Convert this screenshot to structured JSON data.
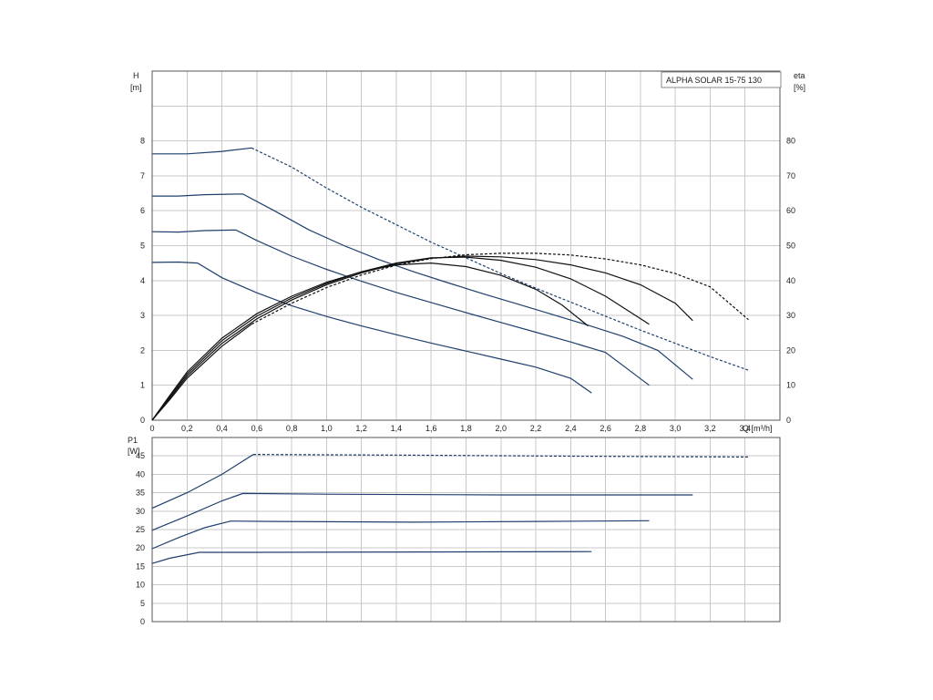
{
  "chart_data": [
    {
      "type": "line",
      "title": "ALPHA SOLAR 15-75  130",
      "xlabel": "Q [m³/h]",
      "ylabel": [
        "H",
        "[m]"
      ],
      "y2label": [
        "eta",
        "[%]"
      ],
      "xlim": [
        0,
        3.6
      ],
      "ylim": [
        0,
        10
      ],
      "y2lim": [
        0,
        100
      ],
      "xticks": [
        "0",
        "0,2",
        "0,4",
        "0,6",
        "0,8",
        "1,0",
        "1,2",
        "1,4",
        "1,6",
        "1,8",
        "2,0",
        "2,2",
        "2,4",
        "2,6",
        "2,8",
        "3,0",
        "3,2",
        "3,4"
      ],
      "yticks": [
        "0",
        "1",
        "2",
        "3",
        "4",
        "5",
        "6",
        "7",
        "8"
      ],
      "y2ticks": [
        "0",
        "10",
        "20",
        "30",
        "40",
        "50",
        "60",
        "70",
        "80"
      ],
      "grid": true,
      "head_series": [
        {
          "axis": "H",
          "color": "#1f3f6e",
          "dashed": false,
          "points": [
            [
              0,
              4.52
            ],
            [
              0.15,
              4.53
            ],
            [
              0.26,
              4.5
            ],
            [
              0.4,
              4.08
            ],
            [
              0.6,
              3.65
            ],
            [
              0.8,
              3.28
            ],
            [
              1.0,
              2.97
            ],
            [
              1.2,
              2.7
            ],
            [
              1.4,
              2.45
            ],
            [
              1.6,
              2.21
            ],
            [
              1.8,
              1.98
            ],
            [
              2.0,
              1.75
            ],
            [
              2.2,
              1.52
            ],
            [
              2.4,
              1.2
            ],
            [
              2.52,
              0.78
            ]
          ]
        },
        {
          "axis": "H",
          "color": "#1f3f6e",
          "dashed": false,
          "points": [
            [
              0,
              5.4
            ],
            [
              0.15,
              5.39
            ],
            [
              0.3,
              5.43
            ],
            [
              0.48,
              5.45
            ],
            [
              0.6,
              5.15
            ],
            [
              0.8,
              4.7
            ],
            [
              1.0,
              4.32
            ],
            [
              1.2,
              3.98
            ],
            [
              1.4,
              3.66
            ],
            [
              1.6,
              3.37
            ],
            [
              1.8,
              3.08
            ],
            [
              2.0,
              2.8
            ],
            [
              2.2,
              2.52
            ],
            [
              2.4,
              2.24
            ],
            [
              2.6,
              1.94
            ],
            [
              2.85,
              1.0
            ]
          ]
        },
        {
          "axis": "H",
          "color": "#1f3f6e",
          "dashed": false,
          "points": [
            [
              0,
              6.42
            ],
            [
              0.15,
              6.42
            ],
            [
              0.3,
              6.46
            ],
            [
              0.52,
              6.48
            ],
            [
              0.7,
              6.0
            ],
            [
              0.9,
              5.45
            ],
            [
              1.1,
              5.0
            ],
            [
              1.3,
              4.6
            ],
            [
              1.5,
              4.25
            ],
            [
              1.7,
              3.93
            ],
            [
              1.9,
              3.62
            ],
            [
              2.1,
              3.32
            ],
            [
              2.3,
              3.02
            ],
            [
              2.5,
              2.72
            ],
            [
              2.7,
              2.4
            ],
            [
              2.9,
              2.0
            ],
            [
              3.1,
              1.17
            ]
          ]
        },
        {
          "axis": "H",
          "color": "#1f3f6e",
          "dashed": false,
          "points": [
            [
              0,
              7.63
            ],
            [
              0.2,
              7.63
            ],
            [
              0.4,
              7.7
            ],
            [
              0.57,
              7.8
            ]
          ]
        },
        {
          "axis": "H",
          "color": "#1f3f6e",
          "dashed": true,
          "points": [
            [
              0.57,
              7.8
            ],
            [
              0.8,
              7.25
            ],
            [
              1.0,
              6.65
            ],
            [
              1.2,
              6.1
            ],
            [
              1.4,
              5.6
            ],
            [
              1.6,
              5.1
            ],
            [
              1.8,
              4.65
            ],
            [
              2.0,
              4.2
            ],
            [
              2.2,
              3.78
            ],
            [
              2.4,
              3.38
            ],
            [
              2.6,
              2.98
            ],
            [
              2.8,
              2.58
            ],
            [
              3.0,
              2.2
            ],
            [
              3.2,
              1.82
            ],
            [
              3.42,
              1.43
            ]
          ]
        }
      ],
      "efficiency_series": [
        {
          "axis": "eta",
          "color": "#111111",
          "dashed": false,
          "points": [
            [
              0,
              0
            ],
            [
              0.1,
              7
            ],
            [
              0.2,
              13.8
            ],
            [
              0.4,
              23.5
            ],
            [
              0.6,
              30.5
            ],
            [
              0.8,
              35.5
            ],
            [
              1.0,
              39.5
            ],
            [
              1.2,
              42.5
            ],
            [
              1.4,
              44.5
            ],
            [
              1.6,
              45
            ],
            [
              1.8,
              44
            ],
            [
              2.0,
              41.5
            ],
            [
              2.2,
              37.5
            ],
            [
              2.35,
              33
            ],
            [
              2.5,
              27
            ]
          ]
        },
        {
          "axis": "eta",
          "color": "#111111",
          "dashed": false,
          "points": [
            [
              0,
              0
            ],
            [
              0.1,
              6.6
            ],
            [
              0.2,
              13.2
            ],
            [
              0.4,
              22.8
            ],
            [
              0.6,
              29.8
            ],
            [
              0.8,
              35
            ],
            [
              1.0,
              39.2
            ],
            [
              1.2,
              42.5
            ],
            [
              1.4,
              45
            ],
            [
              1.6,
              46.5
            ],
            [
              1.8,
              46.7
            ],
            [
              2.0,
              45.8
            ],
            [
              2.2,
              43.8
            ],
            [
              2.4,
              40.5
            ],
            [
              2.6,
              35.5
            ],
            [
              2.85,
              27.5
            ]
          ]
        },
        {
          "axis": "eta",
          "color": "#111111",
          "dashed": false,
          "points": [
            [
              0,
              0
            ],
            [
              0.1,
              6.2
            ],
            [
              0.2,
              12.6
            ],
            [
              0.4,
              22
            ],
            [
              0.6,
              29
            ],
            [
              0.8,
              34.4
            ],
            [
              1.0,
              38.8
            ],
            [
              1.2,
              42.2
            ],
            [
              1.4,
              44.8
            ],
            [
              1.6,
              46.4
            ],
            [
              1.8,
              47
            ],
            [
              2.0,
              46.8
            ],
            [
              2.2,
              46
            ],
            [
              2.4,
              44.5
            ],
            [
              2.6,
              42.2
            ],
            [
              2.8,
              38.8
            ],
            [
              3.0,
              33.5
            ],
            [
              3.1,
              28.5
            ]
          ]
        },
        {
          "axis": "eta",
          "color": "#111111",
          "dashed": false,
          "points": [
            [
              0,
              0
            ],
            [
              0.1,
              5.8
            ],
            [
              0.2,
              12
            ],
            [
              0.4,
              21.2
            ],
            [
              0.57,
              27.5
            ]
          ]
        },
        {
          "axis": "eta",
          "color": "#111111",
          "dashed": true,
          "points": [
            [
              0.57,
              27.5
            ],
            [
              0.8,
              33.5
            ],
            [
              1.0,
              38
            ],
            [
              1.2,
              41.6
            ],
            [
              1.4,
              44.4
            ],
            [
              1.6,
              46.3
            ],
            [
              1.8,
              47.4
            ],
            [
              2.0,
              47.8
            ],
            [
              2.2,
              47.8
            ],
            [
              2.4,
              47.3
            ],
            [
              2.6,
              46.2
            ],
            [
              2.8,
              44.5
            ],
            [
              3.0,
              42
            ],
            [
              3.2,
              38.2
            ],
            [
              3.42,
              28.8
            ]
          ]
        }
      ]
    },
    {
      "type": "line",
      "ylabel": [
        "P1",
        "[W]"
      ],
      "xlim": [
        0,
        3.6
      ],
      "ylim": [
        0,
        50
      ],
      "yticks": [
        "0",
        "5",
        "10",
        "15",
        "20",
        "25",
        "30",
        "35",
        "40",
        "45"
      ],
      "grid": true,
      "series": [
        {
          "color": "#1f3f6e",
          "dashed": false,
          "points": [
            [
              0,
              15.8
            ],
            [
              0.1,
              17.2
            ],
            [
              0.27,
              18.8
            ],
            [
              0.6,
              18.8
            ],
            [
              1.5,
              18.9
            ],
            [
              2.52,
              19.0
            ]
          ]
        },
        {
          "color": "#1f3f6e",
          "dashed": false,
          "points": [
            [
              0,
              19.8
            ],
            [
              0.15,
              22.8
            ],
            [
              0.3,
              25.5
            ],
            [
              0.45,
              27.3
            ],
            [
              0.7,
              27.2
            ],
            [
              1.5,
              27.0
            ],
            [
              2.2,
              27.2
            ],
            [
              2.85,
              27.4
            ]
          ]
        },
        {
          "color": "#1f3f6e",
          "dashed": false,
          "points": [
            [
              0,
              24.8
            ],
            [
              0.2,
              28.7
            ],
            [
              0.4,
              32.8
            ],
            [
              0.52,
              34.8
            ],
            [
              1.0,
              34.6
            ],
            [
              2.0,
              34.4
            ],
            [
              3.1,
              34.4
            ]
          ]
        },
        {
          "color": "#1f3f6e",
          "dashed": false,
          "points": [
            [
              0,
              30.8
            ],
            [
              0.2,
              35.0
            ],
            [
              0.4,
              40.0
            ],
            [
              0.58,
              45.4
            ]
          ]
        },
        {
          "color": "#1f3f6e",
          "dashed": true,
          "points": [
            [
              0.58,
              45.4
            ],
            [
              1.5,
              45.2
            ],
            [
              2.5,
              44.9
            ],
            [
              3.42,
              44.7
            ]
          ]
        }
      ]
    }
  ]
}
